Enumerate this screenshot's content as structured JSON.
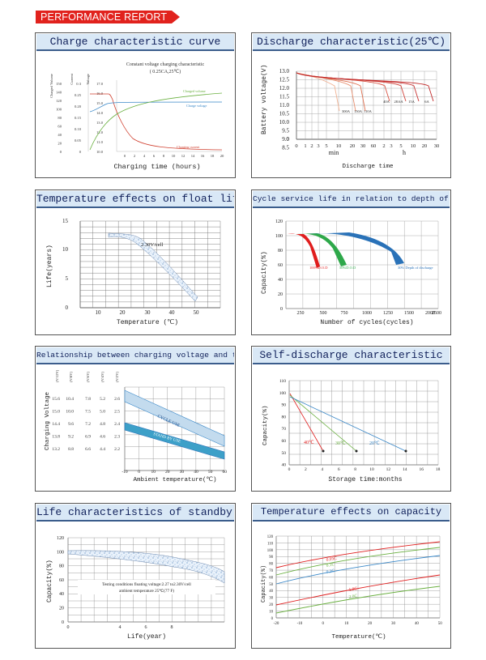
{
  "header": {
    "title": "PERFORMANCE REPORT"
  },
  "colors": {
    "accent": "#e1221d",
    "title_bg": "#d9e8f6",
    "title_text": "#10205a"
  },
  "panels": {
    "charge": {
      "title": "Charge characteristic curve",
      "inner_title": "Constant voltage charging characteristic",
      "inner_subtitle": "( 0.25CA,25℃)",
      "col_labels": [
        "Charged Volume",
        "Current",
        "Voltage"
      ],
      "vol_ticks": [
        "150",
        "140",
        "120",
        "100",
        "80",
        "60",
        "40",
        "20",
        "0"
      ],
      "cur_ticks": [
        "0.3",
        "0.25",
        "0.20",
        "0.15",
        "0.10",
        "0.05",
        "0"
      ],
      "volt_ticks": [
        "17.0",
        "16.0",
        "15.0",
        "14.0",
        "13.0",
        "12.0",
        "11.0",
        "10.0"
      ],
      "x_ticks": [
        "0",
        "2",
        "4",
        "6",
        "8",
        "10",
        "12",
        "14",
        "16",
        "18",
        "20"
      ],
      "xlabel": "Charging time (hours)",
      "lbl_volume": "Charged volume",
      "lbl_voltage": "Charge voltage",
      "lbl_current": "Charging current"
    },
    "discharge": {
      "title": "Discharge characteristic(25℃)",
      "ylabel": "Battery voltage(V)",
      "y_ticks": [
        "13.0",
        "12.5",
        "12.0",
        "11.5",
        "11.0",
        "10.5",
        "10.0",
        "9.5",
        "9.0",
        "8.5",
        "0"
      ],
      "x_ticks": [
        "0",
        "1",
        "2",
        "3",
        "5",
        "10",
        "20",
        "30",
        "60",
        "2",
        "3",
        "5",
        "10",
        "20",
        "30"
      ],
      "unit_min": "min",
      "unit_h": "h",
      "xlabel": "Discharge time",
      "curve_labels": [
        "300A",
        "150A",
        "110A",
        "40A",
        "28.6A",
        "15A",
        "6A"
      ]
    },
    "float": {
      "title": "Temperature effects on float life",
      "ylabel": "Life(years)",
      "y_ticks": [
        "15",
        "10",
        "5",
        "0"
      ],
      "x_ticks": [
        "10",
        "20",
        "30",
        "40",
        "50"
      ],
      "xlabel": "Temperature (℃)",
      "annotation": "2.30V/cell"
    },
    "cycle": {
      "title": "Cycle service life in relation to depth of discharge",
      "ylabel": "Capacity(%)",
      "y_ticks": [
        "120",
        "100",
        "80",
        "60",
        "40",
        "20",
        "0"
      ],
      "x_ticks": [
        "250",
        "500",
        "750",
        "1000",
        "1250",
        "1500",
        "2000",
        "2500"
      ],
      "xlabel": "Number of cycles(cycles)",
      "labels": [
        "100%D.O.D",
        "50%D.O.D",
        "30% Depth of discharge"
      ]
    },
    "voltage": {
      "title": "Relationship between charging voltage and temperature",
      "ylabel": "Charging Voltage",
      "col_heads": [
        "(V/12V)",
        "(V/8V)",
        "(V/6V)",
        "(V/4V)",
        "(V/2V)"
      ],
      "col1": [
        "15.6",
        "15.0",
        "14.4",
        "13.8",
        "13.2"
      ],
      "col2": [
        "10.4",
        "10.0",
        "9.6",
        "9.2",
        "8.8"
      ],
      "col3": [
        "7.8",
        "7.5",
        "7.2",
        "6.9",
        "6.6"
      ],
      "col4": [
        "5.2",
        "5.0",
        "4.8",
        "4.6",
        "4.4"
      ],
      "col5": [
        "2.6",
        "2.5",
        "2.4",
        "2.3",
        "2.2"
      ],
      "x_ticks": [
        "-10",
        "0",
        "10",
        "20",
        "30",
        "40",
        "50",
        "60"
      ],
      "xlabel": "Ambient temperature(℃)",
      "band1": "CYCLE USE",
      "band2": "STAND BY USE"
    },
    "selfdis": {
      "title": "Self-discharge characteristic",
      "ylabel": "Capacity(%)",
      "y_ticks": [
        "110",
        "100",
        "90",
        "80",
        "70",
        "60",
        "50",
        "40"
      ],
      "x_ticks": [
        "0",
        "2",
        "4",
        "6",
        "8",
        "10",
        "12",
        "14",
        "16",
        "18",
        "20"
      ],
      "xlabel": "Storage time:months",
      "labels": [
        "40℃",
        "30℃",
        "20℃"
      ]
    },
    "standby": {
      "title": "Life characteristics of standby use",
      "ylabel": "Capacity(%)",
      "y_ticks": [
        "120",
        "100",
        "80",
        "60",
        "40",
        "20",
        "0"
      ],
      "x_ticks": [
        "0",
        "4",
        "6",
        "8"
      ],
      "xlabel": "Life(year)",
      "note1": "Testing conditions floating voltage:2.27 to2.30V/cell",
      "note2": "ambient temperature 25℃(77 F)"
    },
    "tempcap": {
      "title": "Temperature effects on capacity",
      "ylabel": "Capacity(%)",
      "y_ticks": [
        "120",
        "110",
        "100",
        "90",
        "80",
        "70",
        "60",
        "50",
        "40",
        "30",
        "20",
        "10",
        "0"
      ],
      "x_ticks": [
        "-20",
        "-10",
        "0",
        "10",
        "20",
        "30",
        "40",
        "50"
      ],
      "xlabel": "Temperature(℃)",
      "labels": [
        "0.05C",
        "0.1C",
        "0.2C",
        "1.0C",
        "2.0C"
      ]
    }
  }
}
